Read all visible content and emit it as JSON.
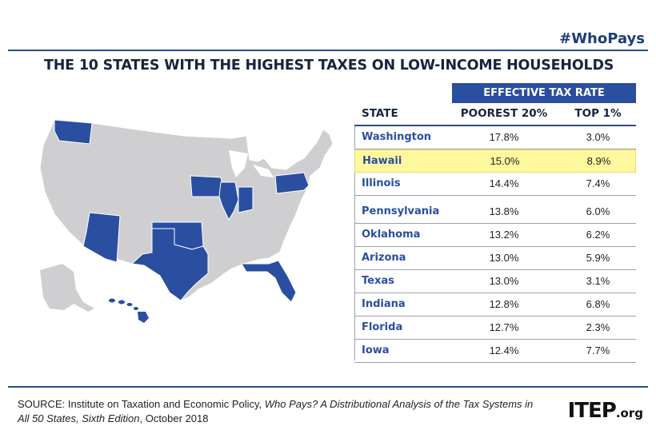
{
  "hashtag": "#WhoPays",
  "colors": {
    "accent": "#2a4ea0",
    "highlight": "#fff79e",
    "map_gray": "#cfcfd1"
  },
  "chart_data": {
    "type": "table",
    "title": "THE 10 STATES WITH THE HIGHEST TAXES ON LOW-INCOME HOUSEHOLDS",
    "group_header": "EFFECTIVE TAX RATE",
    "columns": [
      "STATE",
      "POOREST 20%",
      "TOP 1%"
    ],
    "highlighted_state": "Hawaii",
    "rows": [
      {
        "state": "Washington",
        "poorest": "17.8%",
        "top": "3.0%"
      },
      {
        "state": "Hawaii",
        "poorest": "15.0%",
        "top": "8.9%"
      },
      {
        "state": "Illinois",
        "poorest": "14.4%",
        "top": "7.4%"
      },
      {
        "state": "Pennsylvania",
        "poorest": "13.8%",
        "top": "6.0%"
      },
      {
        "state": "Oklahoma",
        "poorest": "13.2%",
        "top": "6.2%"
      },
      {
        "state": "Arizona",
        "poorest": "13.0%",
        "top": "5.9%"
      },
      {
        "state": "Texas",
        "poorest": "13.0%",
        "top": "3.1%"
      },
      {
        "state": "Indiana",
        "poorest": "12.8%",
        "top": "6.8%"
      },
      {
        "state": "Florida",
        "poorest": "12.7%",
        "top": "2.3%"
      },
      {
        "state": "Iowa",
        "poorest": "12.4%",
        "top": "7.7%"
      }
    ]
  },
  "source": {
    "prefix": "SOURCE: Institute on Taxation and Economic Policy, ",
    "italic": "Who Pays? A Distributional Analysis of the Tax Systems in All 50 States, Sixth Edition",
    "suffix": ", October 2018"
  },
  "logo": {
    "main": "ITEP",
    "suffix": ".org"
  }
}
